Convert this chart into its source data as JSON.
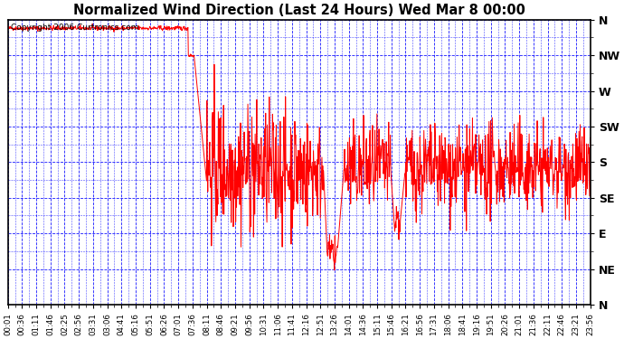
{
  "title": "Normalized Wind Direction (Last 24 Hours) Wed Mar 8 00:00",
  "copyright": "Copyright 2006 Curtronics.com",
  "background_color": "#ffffff",
  "plot_bg_color": "#ffffff",
  "grid_color": "#0000ff",
  "line_color": "#ff0000",
  "ytick_labels": [
    "N",
    "NW",
    "W",
    "SW",
    "S",
    "SE",
    "E",
    "NE",
    "N"
  ],
  "ytick_values": [
    1.0,
    0.875,
    0.75,
    0.625,
    0.5,
    0.375,
    0.25,
    0.125,
    0.0
  ],
  "xtick_labels": [
    "00:01",
    "00:36",
    "01:11",
    "01:46",
    "02:25",
    "02:56",
    "03:31",
    "03:06",
    "04:41",
    "05:16",
    "05:51",
    "06:26",
    "07:01",
    "07:36",
    "08:11",
    "08:46",
    "09:21",
    "09:56",
    "10:31",
    "11:06",
    "11:41",
    "12:16",
    "12:51",
    "13:26",
    "14:01",
    "14:36",
    "15:11",
    "15:46",
    "16:21",
    "16:56",
    "17:31",
    "18:06",
    "18:41",
    "19:16",
    "19:51",
    "20:26",
    "21:01",
    "21:36",
    "22:11",
    "22:46",
    "23:21",
    "23:56"
  ],
  "n_points": 1440,
  "seed": 42
}
